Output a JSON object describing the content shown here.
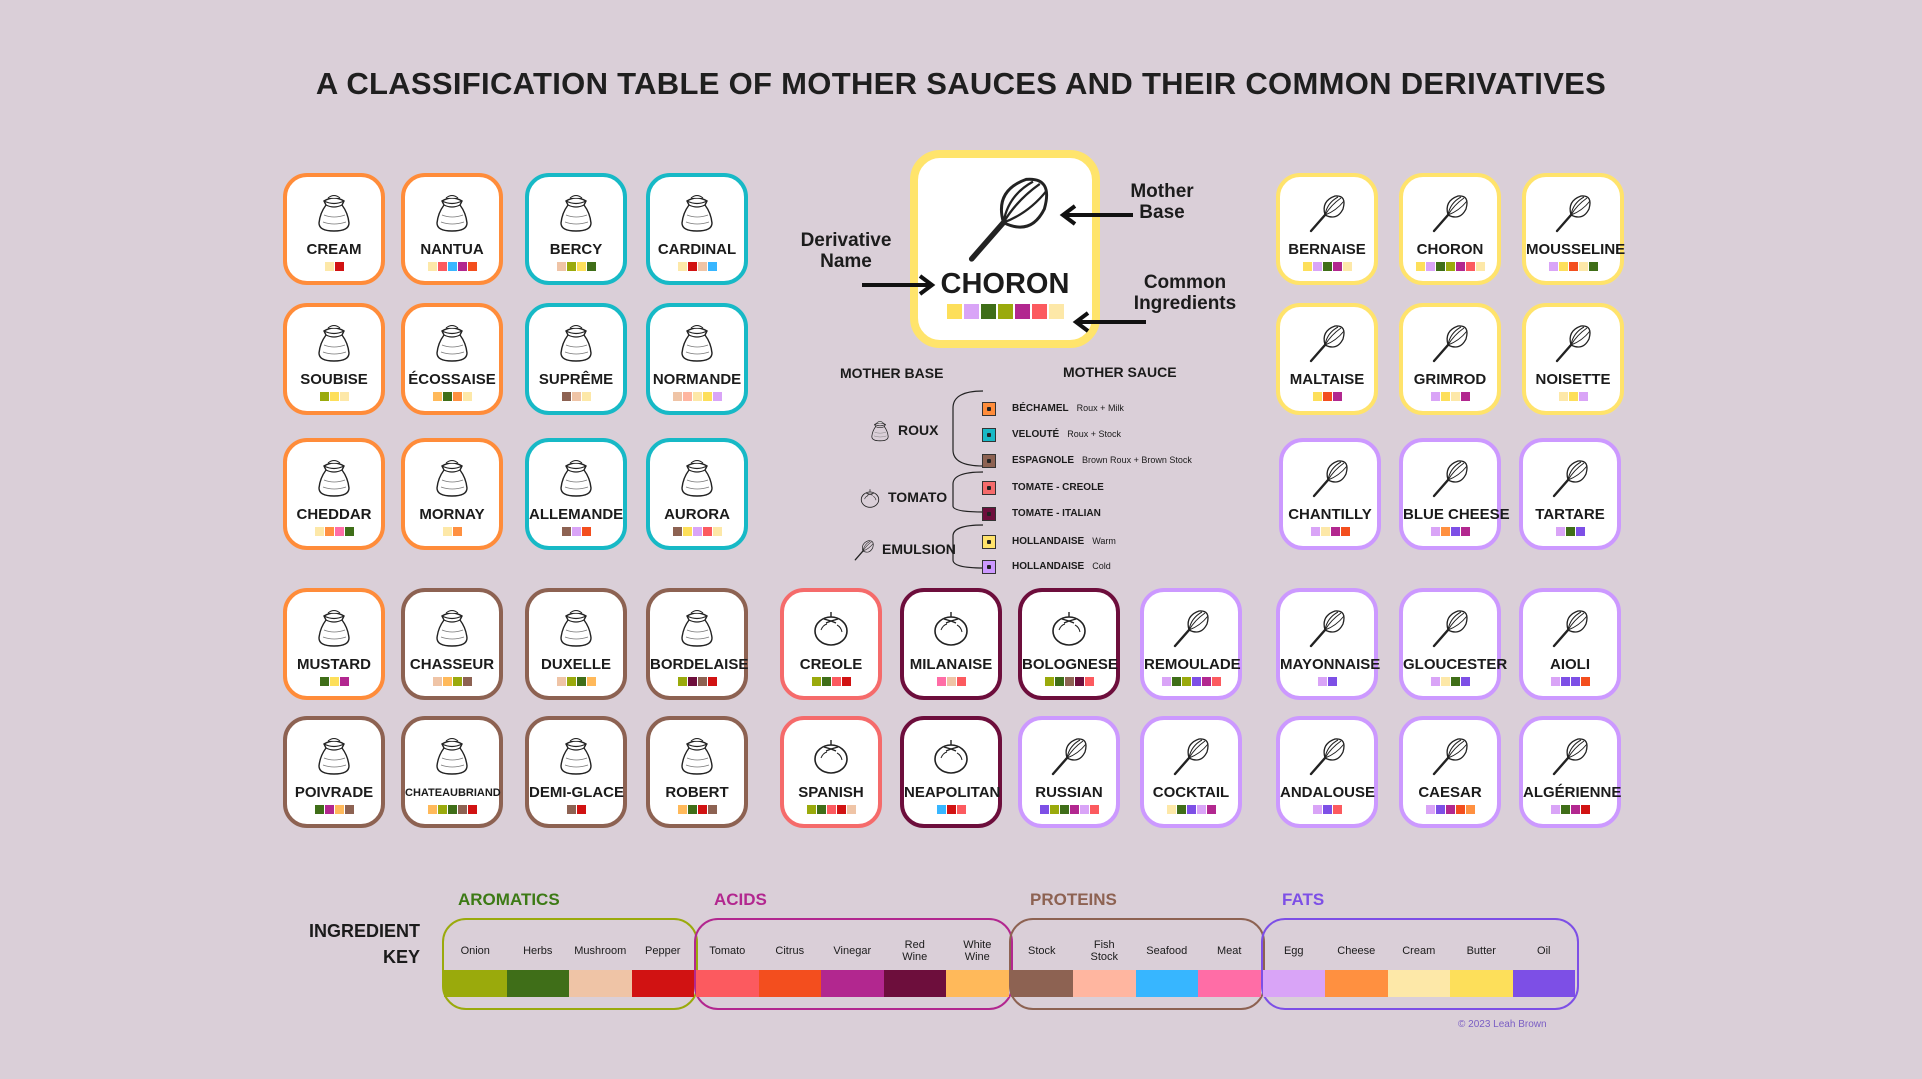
{
  "title": "A CLASSIFICATION TABLE OF MOTHER SAUCES AND THEIR COMMON DERIVATIVES",
  "colors": {
    "onion": "#9aaa0c",
    "herbs": "#3f6e18",
    "mushroom": "#efc4a6",
    "pepper": "#d11212",
    "tomato": "#fc5a5f",
    "citrus": "#f34e1e",
    "vinegar": "#b2278f",
    "red_wine": "#6d0e3c",
    "white_wine": "#ffb95a",
    "stock": "#8d6252",
    "fish_stock": "#ffb6a0",
    "seafood": "#37b6ff",
    "meat": "#ff6da6",
    "egg": "#d9a4f7",
    "cheese": "#ff9040",
    "cream": "#fde8a8",
    "butter": "#fddf5a",
    "oil": "#7d4fe6",
    "bechamel": "#ff8c3a",
    "veloute": "#17b9c6",
    "espagnole": "#8d6252",
    "tomato_creole": "#f56b6b",
    "tomato_italian": "#6d0e3c",
    "hollandaise": "#ffe36b",
    "mayo": "#cc99ff"
  },
  "legend": {
    "name": "CHORON",
    "icon": "whisk-icon",
    "derivative_label": "Derivative Name",
    "mother_base_label": "Mother Base",
    "ingredients_label": "Common Ingredients",
    "swatches": [
      "butter",
      "egg",
      "herbs",
      "onion",
      "vinegar",
      "tomato",
      "cream"
    ]
  },
  "mother_table": {
    "mother_base_header": "MOTHER BASE",
    "mother_sauce_header": "MOTHER SAUCE",
    "bases": [
      {
        "label": "ROUX",
        "icon": "flour-sack-icon"
      },
      {
        "label": "TOMATO",
        "icon": "tomato-icon"
      },
      {
        "label": "EMULSION",
        "icon": "whisk-icon"
      }
    ],
    "sauces": [
      {
        "name": "BÉCHAMEL",
        "desc": "Roux + Milk",
        "color": "bechamel"
      },
      {
        "name": "VELOUTÉ",
        "desc": "Roux + Stock",
        "color": "veloute"
      },
      {
        "name": "ESPAGNOLE",
        "desc": "Brown Roux + Brown Stock",
        "color": "espagnole"
      },
      {
        "name": "TOMATE - CREOLE",
        "desc": "",
        "color": "tomato_creole"
      },
      {
        "name": "TOMATE - ITALIAN",
        "desc": "",
        "color": "tomato_italian"
      },
      {
        "name": "HOLLANDAISE",
        "desc": "Warm",
        "color": "hollandaise"
      },
      {
        "name": "HOLLANDAISE",
        "desc": "Cold",
        "color": "mayo"
      }
    ]
  },
  "tiles": [
    {
      "name": "CREAM",
      "icon": "flour-sack-icon",
      "mother": "bechamel",
      "swatches": [
        "cream",
        "pepper"
      ]
    },
    {
      "name": "NANTUA",
      "icon": "flour-sack-icon",
      "mother": "bechamel",
      "swatches": [
        "cream",
        "tomato",
        "seafood",
        "vinegar",
        "citrus"
      ]
    },
    {
      "name": "BERCY",
      "icon": "flour-sack-icon",
      "mother": "veloute",
      "swatches": [
        "mushroom",
        "onion",
        "butter",
        "herbs"
      ]
    },
    {
      "name": "CARDINAL",
      "icon": "flour-sack-icon",
      "mother": "veloute",
      "swatches": [
        "cream",
        "pepper",
        "mushroom",
        "seafood"
      ]
    },
    {
      "name": "SOUBISE",
      "icon": "flour-sack-icon",
      "mother": "bechamel",
      "swatches": [
        "onion",
        "butter",
        "cream"
      ]
    },
    {
      "name": "ÉCOSSAISE",
      "icon": "flour-sack-icon",
      "mother": "bechamel",
      "swatches": [
        "white_wine",
        "herbs",
        "cheese",
        "cream"
      ]
    },
    {
      "name": "SUPRÊME",
      "icon": "flour-sack-icon",
      "mother": "veloute",
      "swatches": [
        "stock",
        "mushroom",
        "cream"
      ]
    },
    {
      "name": "NORMANDE",
      "icon": "flour-sack-icon",
      "mother": "veloute",
      "swatches": [
        "mushroom",
        "fish_stock",
        "cream",
        "butter",
        "egg"
      ]
    },
    {
      "name": "CHEDDAR",
      "icon": "flour-sack-icon",
      "mother": "bechamel",
      "swatches": [
        "cream",
        "cheese",
        "meat",
        "herbs"
      ]
    },
    {
      "name": "MORNAY",
      "icon": "flour-sack-icon",
      "mother": "bechamel",
      "swatches": [
        "cream",
        "cheese"
      ]
    },
    {
      "name": "ALLEMANDE",
      "icon": "flour-sack-icon",
      "mother": "veloute",
      "swatches": [
        "stock",
        "egg",
        "citrus"
      ]
    },
    {
      "name": "AURORA",
      "icon": "flour-sack-icon",
      "mother": "veloute",
      "swatches": [
        "stock",
        "butter",
        "egg",
        "tomato",
        "cream"
      ]
    },
    {
      "name": "MUSTARD",
      "icon": "flour-sack-icon",
      "mother": "bechamel",
      "swatches": [
        "herbs",
        "butter",
        "vinegar"
      ]
    },
    {
      "name": "CHASSEUR",
      "icon": "flour-sack-icon",
      "mother": "espagnole",
      "swatches": [
        "mushroom",
        "white_wine",
        "onion",
        "stock"
      ]
    },
    {
      "name": "DUXELLE",
      "icon": "flour-sack-icon",
      "mother": "espagnole",
      "swatches": [
        "mushroom",
        "onion",
        "herbs",
        "white_wine"
      ]
    },
    {
      "name": "BORDELAISE",
      "icon": "flour-sack-icon",
      "mother": "espagnole",
      "swatches": [
        "onion",
        "red_wine",
        "stock",
        "pepper"
      ]
    },
    {
      "name": "POIVRADE",
      "icon": "flour-sack-icon",
      "mother": "espagnole",
      "swatches": [
        "herbs",
        "vinegar",
        "white_wine",
        "stock"
      ]
    },
    {
      "name": "CHATEAUBRIAND",
      "icon": "flour-sack-icon",
      "mother": "espagnole",
      "swatches": [
        "white_wine",
        "onion",
        "herbs",
        "stock",
        "pepper"
      ]
    },
    {
      "name": "DEMI-GLACE",
      "icon": "flour-sack-icon",
      "mother": "espagnole",
      "swatches": [
        "stock",
        "pepper"
      ]
    },
    {
      "name": "ROBERT",
      "icon": "flour-sack-icon",
      "mother": "espagnole",
      "swatches": [
        "white_wine",
        "herbs",
        "pepper",
        "stock"
      ]
    },
    {
      "name": "CREOLE",
      "icon": "tomato-icon",
      "mother": "tomato_creole",
      "swatches": [
        "onion",
        "herbs",
        "tomato",
        "pepper"
      ]
    },
    {
      "name": "MILANAISE",
      "icon": "tomato-icon",
      "mother": "tomato_italian",
      "swatches": [
        "meat",
        "mushroom",
        "tomato"
      ]
    },
    {
      "name": "BOLOGNESE",
      "icon": "tomato-icon",
      "mother": "tomato_italian",
      "swatches": [
        "onion",
        "herbs",
        "stock",
        "red_wine",
        "tomato"
      ]
    },
    {
      "name": "REMOULADE",
      "icon": "whisk-icon",
      "mother": "mayo",
      "swatches": [
        "egg",
        "herbs",
        "onion",
        "oil",
        "vinegar",
        "tomato"
      ]
    },
    {
      "name": "SPANISH",
      "icon": "tomato-icon",
      "mother": "tomato_creole",
      "swatches": [
        "onion",
        "herbs",
        "tomato",
        "pepper",
        "mushroom"
      ]
    },
    {
      "name": "NEAPOLITAN",
      "icon": "tomato-icon",
      "mother": "tomato_italian",
      "swatches": [
        "seafood",
        "pepper",
        "tomato"
      ]
    },
    {
      "name": "RUSSIAN",
      "icon": "whisk-icon",
      "mother": "mayo",
      "swatches": [
        "oil",
        "onion",
        "herbs",
        "vinegar",
        "egg",
        "tomato"
      ]
    },
    {
      "name": "COCKTAIL",
      "icon": "whisk-icon",
      "mother": "mayo",
      "swatches": [
        "cream",
        "herbs",
        "oil",
        "egg",
        "vinegar"
      ]
    },
    {
      "name": "BERNAISE",
      "icon": "whisk-icon",
      "mother": "hollandaise",
      "swatches": [
        "butter",
        "egg",
        "herbs",
        "vinegar",
        "cream"
      ]
    },
    {
      "name": "CHORON",
      "icon": "whisk-icon",
      "mother": "hollandaise",
      "swatches": [
        "butter",
        "egg",
        "herbs",
        "onion",
        "vinegar",
        "tomato",
        "cream"
      ]
    },
    {
      "name": "MOUSSELINE",
      "icon": "whisk-icon",
      "mother": "hollandaise",
      "swatches": [
        "egg",
        "butter",
        "citrus",
        "cream",
        "herbs"
      ]
    },
    {
      "name": "MALTAISE",
      "icon": "whisk-icon",
      "mother": "hollandaise",
      "swatches": [
        "butter",
        "citrus",
        "vinegar"
      ]
    },
    {
      "name": "GRIMROD",
      "icon": "whisk-icon",
      "mother": "hollandaise",
      "swatches": [
        "egg",
        "butter",
        "cream",
        "vinegar"
      ]
    },
    {
      "name": "NOISETTE",
      "icon": "whisk-icon",
      "mother": "hollandaise",
      "swatches": [
        "cream",
        "butter",
        "egg"
      ]
    },
    {
      "name": "CHANTILLY",
      "icon": "whisk-icon",
      "mother": "mayo",
      "swatches": [
        "egg",
        "cream",
        "vinegar",
        "citrus"
      ]
    },
    {
      "name": "BLUE CHEESE",
      "icon": "whisk-icon",
      "mother": "mayo",
      "swatches": [
        "egg",
        "cheese",
        "oil",
        "vinegar"
      ]
    },
    {
      "name": "TARTARE",
      "icon": "whisk-icon",
      "mother": "mayo",
      "swatches": [
        "egg",
        "herbs",
        "oil"
      ]
    },
    {
      "name": "MAYONNAISE",
      "icon": "whisk-icon",
      "mother": "mayo",
      "swatches": [
        "egg",
        "oil"
      ]
    },
    {
      "name": "GLOUCESTER",
      "icon": "whisk-icon",
      "mother": "mayo",
      "swatches": [
        "egg",
        "cream",
        "herbs",
        "oil"
      ]
    },
    {
      "name": "AIOLI",
      "icon": "whisk-icon",
      "mother": "mayo",
      "swatches": [
        "egg",
        "oil",
        "oil",
        "citrus"
      ]
    },
    {
      "name": "ANDALOUSE",
      "icon": "whisk-icon",
      "mother": "mayo",
      "swatches": [
        "egg",
        "oil",
        "tomato"
      ]
    },
    {
      "name": "CAESAR",
      "icon": "whisk-icon",
      "mother": "mayo",
      "swatches": [
        "egg",
        "oil",
        "vinegar",
        "citrus",
        "cheese"
      ]
    },
    {
      "name": "ALGÉRIENNE",
      "icon": "whisk-icon",
      "mother": "mayo",
      "swatches": [
        "egg",
        "herbs",
        "vinegar",
        "pepper"
      ]
    }
  ],
  "ingredient_key": {
    "label_line1": "INGREDIENT",
    "label_line2": "KEY",
    "categories": [
      {
        "name": "AROMATICS",
        "color": "#3c7a15",
        "border": "#9aaa0c",
        "items": [
          {
            "label": "Onion",
            "color": "onion"
          },
          {
            "label": "Herbs",
            "color": "herbs"
          },
          {
            "label": "Mushroom",
            "color": "mushroom"
          },
          {
            "label": "Pepper",
            "color": "pepper"
          }
        ]
      },
      {
        "name": "ACIDS",
        "color": "#b2278f",
        "border": "#b2278f",
        "items": [
          {
            "label": "Tomato",
            "color": "tomato"
          },
          {
            "label": "Citrus",
            "color": "citrus"
          },
          {
            "label": "Vinegar",
            "color": "vinegar"
          },
          {
            "label": "Red Wine",
            "color": "red_wine"
          },
          {
            "label": "White Wine",
            "color": "white_wine"
          }
        ]
      },
      {
        "name": "PROTEINS",
        "color": "#8d6252",
        "border": "#8d6252",
        "items": [
          {
            "label": "Stock",
            "color": "stock"
          },
          {
            "label": "Fish Stock",
            "color": "fish_stock"
          },
          {
            "label": "Seafood",
            "color": "seafood"
          },
          {
            "label": "Meat",
            "color": "meat"
          }
        ]
      },
      {
        "name": "FATS",
        "color": "#7d4fe6",
        "border": "#7d4fe6",
        "items": [
          {
            "label": "Egg",
            "color": "egg"
          },
          {
            "label": "Cheese",
            "color": "cheese"
          },
          {
            "label": "Cream",
            "color": "cream"
          },
          {
            "label": "Butter",
            "color": "butter"
          },
          {
            "label": "Oil",
            "color": "oil"
          }
        ]
      }
    ]
  },
  "credit": "© 2023 Leah Brown"
}
